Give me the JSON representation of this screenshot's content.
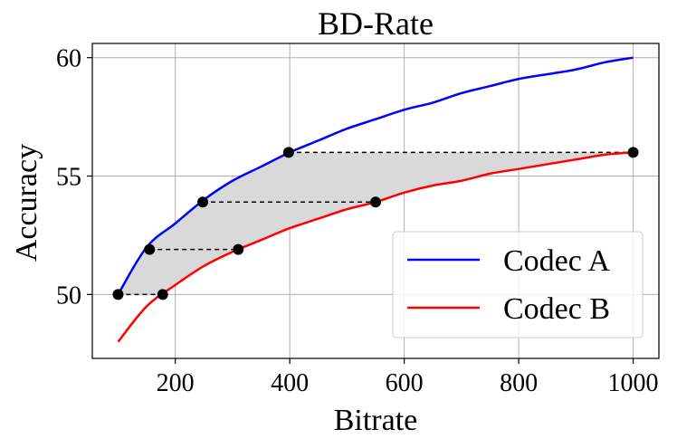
{
  "chart_data": {
    "type": "line",
    "title": "BD-Rate",
    "xlabel": "Bitrate",
    "ylabel": "Accuracy",
    "xlim": [
      55,
      1045
    ],
    "ylim": [
      47.3,
      60.6
    ],
    "xticks": [
      200,
      400,
      600,
      800,
      1000
    ],
    "yticks": [
      50,
      55,
      60
    ],
    "grid": true,
    "legend_position": "lower-right",
    "series": [
      {
        "name": "Codec A",
        "color": "#0000ff",
        "x": [
          100,
          150,
          200,
          250,
          300,
          350,
          400,
          450,
          500,
          550,
          600,
          650,
          700,
          750,
          800,
          850,
          900,
          950,
          1000
        ],
        "y": [
          50.0,
          52.0,
          53.0,
          54.0,
          54.8,
          55.4,
          56.0,
          56.5,
          57.0,
          57.4,
          57.8,
          58.1,
          58.5,
          58.8,
          59.1,
          59.3,
          59.5,
          59.8,
          60.0
        ]
      },
      {
        "name": "Codec B",
        "color": "#ff0000",
        "x": [
          100,
          150,
          200,
          250,
          300,
          350,
          400,
          450,
          500,
          550,
          600,
          650,
          700,
          750,
          800,
          850,
          900,
          950,
          1000
        ],
        "y": [
          48.0,
          49.5,
          50.4,
          51.2,
          51.8,
          52.3,
          52.8,
          53.2,
          53.6,
          53.9,
          54.3,
          54.6,
          54.8,
          55.1,
          55.3,
          55.5,
          55.7,
          55.9,
          56.0
        ]
      }
    ],
    "points": [
      {
        "x": 100,
        "y": 50.0
      },
      {
        "x": 178,
        "y": 50.0
      },
      {
        "x": 155,
        "y": 51.9
      },
      {
        "x": 310,
        "y": 51.9
      },
      {
        "x": 248,
        "y": 53.9
      },
      {
        "x": 550,
        "y": 53.9
      },
      {
        "x": 398,
        "y": 56.0
      },
      {
        "x": 1000,
        "y": 56.0
      }
    ],
    "dashed_segments": [
      {
        "x1": 100,
        "x2": 178,
        "y": 50.0
      },
      {
        "x1": 155,
        "x2": 310,
        "y": 51.9
      },
      {
        "x1": 248,
        "x2": 550,
        "y": 53.9
      },
      {
        "x1": 398,
        "x2": 1000,
        "y": 56.0
      }
    ],
    "shaded_region": {
      "between": [
        "Codec A",
        "Codec B"
      ],
      "y_range": [
        50.0,
        56.0
      ],
      "color": "#d9d9d9"
    },
    "colors": {
      "grid": "#b0b0b0",
      "axes": "#000000",
      "points": "#000000"
    }
  }
}
